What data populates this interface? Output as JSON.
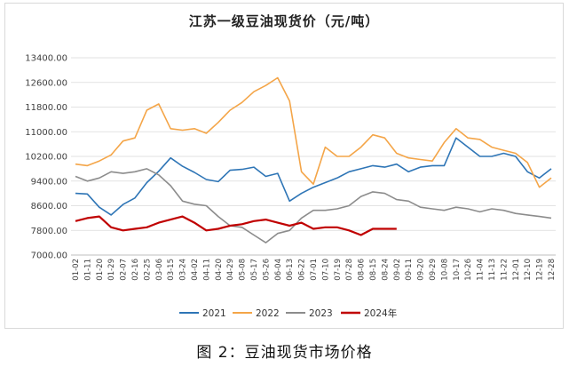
{
  "caption": "图 2：豆油现货市场价格",
  "chart_data": {
    "type": "line",
    "title": "江苏一级豆油现货价（元/吨）",
    "xlabel": "",
    "ylabel": "",
    "ylim": [
      7000,
      13400
    ],
    "yticks": [
      "13400.00",
      "12600.00",
      "11800.00",
      "11000.00",
      "10200.00",
      "9400.00",
      "8600.00",
      "7800.00",
      "7000.00"
    ],
    "x_categories": [
      "01-02",
      "01-11",
      "01-20",
      "01-29",
      "02-07",
      "02-16",
      "02-25",
      "03-06",
      "03-15",
      "03-24",
      "04-02",
      "04-11",
      "04-20",
      "04-29",
      "05-08",
      "05-17",
      "05-26",
      "06-04",
      "06-13",
      "06-22",
      "07-01",
      "07-10",
      "07-19",
      "07-28",
      "08-06",
      "08-15",
      "08-24",
      "09-02",
      "09-11",
      "09-20",
      "09-29",
      "10-08",
      "10-17",
      "10-26",
      "11-04",
      "11-13",
      "11-22",
      "12-01",
      "12-10",
      "12-19",
      "12-28"
    ],
    "x_tick_labels": [
      "01-02",
      "01-11",
      "01-20",
      "01-29",
      "02-07",
      "02-16",
      "02-25",
      "03-06",
      "03-15",
      "03-24",
      "04-02",
      "04-11",
      "04-20",
      "04-29",
      "05-08",
      "05-17",
      "05-26",
      "06-04",
      "06-13",
      "06-22",
      "07-01",
      "07-10",
      "07-19",
      "07-28",
      "08-06",
      "08-15",
      "08-24",
      "09-02",
      "09-11",
      "09-20",
      "09-29",
      "10-08",
      "10-17",
      "10-26",
      "11-04",
      "11-13",
      "11-22",
      "12-01",
      "12-10",
      "12-19",
      "12-28"
    ],
    "legend_position": "bottom",
    "grid": true,
    "series": [
      {
        "name": "2021",
        "color": "#2e75b6",
        "values": [
          9000,
          8980,
          8550,
          8300,
          8640,
          8850,
          9350,
          9720,
          10150,
          9880,
          9680,
          9450,
          9380,
          9750,
          9780,
          9850,
          9550,
          9650,
          8750,
          9000,
          9200,
          9350,
          9500,
          9700,
          9800,
          9900,
          9850,
          9950,
          9700,
          9850,
          9900,
          9900,
          10800,
          10500,
          10200,
          10200,
          10300,
          10200,
          9700,
          9500,
          9800
        ]
      },
      {
        "name": "2022",
        "color": "#f4a548",
        "values": [
          9950,
          9900,
          10050,
          10250,
          10700,
          10800,
          11700,
          11900,
          11100,
          11050,
          11100,
          10950,
          11300,
          11700,
          11950,
          12300,
          12500,
          12750,
          12000,
          9700,
          9300,
          10500,
          10200,
          10200,
          10500,
          10900,
          10800,
          10300,
          10150,
          10100,
          10050,
          10650,
          11100,
          10800,
          10750,
          10500,
          10400,
          10300,
          10000,
          9200,
          9500
        ]
      },
      {
        "name": "2023",
        "color": "#8c8c8c",
        "values": [
          9550,
          9400,
          9500,
          9700,
          9650,
          9700,
          9800,
          9600,
          9250,
          8750,
          8650,
          8600,
          8250,
          7950,
          7900,
          7650,
          7400,
          7700,
          7800,
          8200,
          8450,
          8450,
          8500,
          8600,
          8900,
          9050,
          9000,
          8800,
          8750,
          8550,
          8500,
          8450,
          8550,
          8500,
          8400,
          8500,
          8450,
          8350,
          8300,
          8250,
          8200
        ]
      },
      {
        "name": "2024年",
        "color": "#c00000",
        "values": [
          8100,
          8200,
          8250,
          7900,
          7800,
          7850,
          7900,
          8050,
          8150,
          8250,
          8050,
          7800,
          7850,
          7950,
          8000,
          8100,
          8150,
          8050,
          7950,
          8050,
          7850,
          7900,
          7900,
          7800,
          7650,
          7850,
          7850,
          7850,
          null,
          null,
          null,
          null,
          null,
          null,
          null,
          null,
          null,
          null,
          null,
          null,
          null
        ]
      }
    ]
  }
}
